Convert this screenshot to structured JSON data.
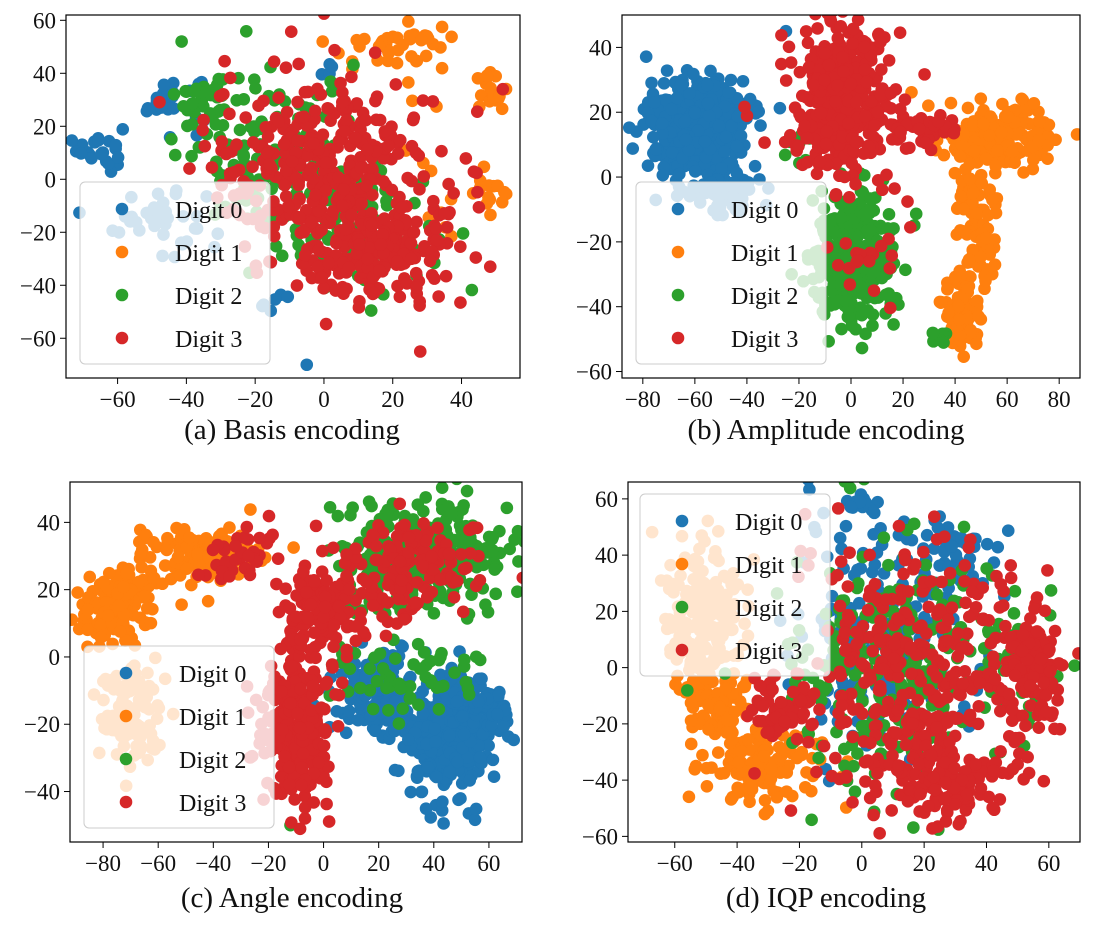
{
  "colors": {
    "Digit 0": "#1f77b4",
    "Digit 1": "#ff7f0e",
    "Digit 2": "#2ca02c",
    "Digit 3": "#d62728"
  },
  "chart_data": [
    {
      "type": "scatter",
      "panel": "a",
      "caption": "(a) Basis encoding",
      "xlim": [
        -75,
        57
      ],
      "ylim": [
        -75,
        62
      ],
      "xticks": [
        -60,
        -40,
        -20,
        0,
        20,
        40
      ],
      "yticks": [
        -60,
        -40,
        -20,
        0,
        20,
        40,
        60
      ],
      "legend": {
        "position": "lower-left",
        "entries": [
          "Digit 0",
          "Digit 1",
          "Digit 2",
          "Digit 3"
        ]
      },
      "series": [
        {
          "name": "Digit 0",
          "clusters": [
            {
              "cx": -65,
              "cy": 12,
              "rx": 6,
              "ry": 8,
              "n": 22
            },
            {
              "cx": -45,
              "cy": 30,
              "rx": 10,
              "ry": 9,
              "n": 28
            },
            {
              "cx": -48,
              "cy": -15,
              "rx": 12,
              "ry": 12,
              "n": 40
            },
            {
              "cx": -15,
              "cy": -45,
              "rx": 4,
              "ry": 6,
              "n": 6
            },
            {
              "cx": -5,
              "cy": -70,
              "rx": 1,
              "ry": 1,
              "n": 1
            },
            {
              "cx": 2,
              "cy": 40,
              "rx": 3,
              "ry": 4,
              "n": 5
            }
          ]
        },
        {
          "name": "Digit 1",
          "clusters": [
            {
              "cx": 20,
              "cy": 50,
              "rx": 18,
              "ry": 8,
              "n": 40
            },
            {
              "cx": 48,
              "cy": 33,
              "rx": 5,
              "ry": 6,
              "n": 16
            },
            {
              "cx": 48,
              "cy": -5,
              "rx": 5,
              "ry": 6,
              "n": 14
            },
            {
              "cx": 35,
              "cy": 10,
              "rx": 10,
              "ry": 25,
              "n": 12
            }
          ]
        },
        {
          "name": "Digit 2",
          "clusters": [
            {
              "cx": -15,
              "cy": 10,
              "rx": 25,
              "ry": 28,
              "n": 130
            },
            {
              "cx": 10,
              "cy": -20,
              "rx": 20,
              "ry": 22,
              "n": 100
            },
            {
              "cx": -35,
              "cy": 30,
              "rx": 8,
              "ry": 8,
              "n": 20
            }
          ]
        },
        {
          "name": "Digit 3",
          "clusters": [
            {
              "cx": 0,
              "cy": 5,
              "rx": 30,
              "ry": 33,
              "n": 340
            },
            {
              "cx": 15,
              "cy": -30,
              "rx": 20,
              "ry": 15,
              "n": 180
            },
            {
              "cx": 28,
              "cy": -65,
              "rx": 1,
              "ry": 1,
              "n": 1
            },
            {
              "cx": 52,
              "cy": 34,
              "rx": 1,
              "ry": 1,
              "n": 1
            },
            {
              "cx": 38,
              "cy": -15,
              "rx": 8,
              "ry": 10,
              "n": 12
            }
          ]
        }
      ]
    },
    {
      "type": "scatter",
      "panel": "b",
      "caption": "(b) Amplitude encoding",
      "xlim": [
        -88,
        88
      ],
      "ylim": [
        -62,
        50
      ],
      "xticks": [
        -80,
        -60,
        -40,
        -20,
        0,
        20,
        40,
        60,
        80
      ],
      "yticks": [
        -60,
        -40,
        -20,
        0,
        20,
        40
      ],
      "legend": {
        "position": "lower-left",
        "entries": [
          "Digit 0",
          "Digit 1",
          "Digit 2",
          "Digit 3"
        ]
      },
      "series": [
        {
          "name": "Digit 0",
          "clusters": [
            {
              "cx": -58,
              "cy": 15,
              "rx": 17,
              "ry": 14,
              "n": 420
            },
            {
              "cx": -48,
              "cy": -5,
              "rx": 12,
              "ry": 8,
              "n": 60
            },
            {
              "cx": -25,
              "cy": 45,
              "rx": 1,
              "ry": 1,
              "n": 1
            }
          ]
        },
        {
          "name": "Digit 1",
          "clusters": [
            {
              "cx": 55,
              "cy": 12,
              "rx": 22,
              "ry": 9,
              "n": 190
            },
            {
              "cx": 48,
              "cy": -15,
              "rx": 7,
              "ry": 20,
              "n": 90
            },
            {
              "cx": 42,
              "cy": -42,
              "rx": 8,
              "ry": 10,
              "n": 70
            }
          ]
        },
        {
          "name": "Digit 2",
          "clusters": [
            {
              "cx": 0,
              "cy": -25,
              "rx": 16,
              "ry": 18,
              "n": 320
            },
            {
              "cx": -20,
              "cy": 10,
              "rx": 6,
              "ry": 6,
              "n": 10
            },
            {
              "cx": 35,
              "cy": -50,
              "rx": 4,
              "ry": 5,
              "n": 8
            }
          ]
        },
        {
          "name": "Digit 3",
          "clusters": [
            {
              "cx": -3,
              "cy": 25,
              "rx": 17,
              "ry": 22,
              "n": 400
            },
            {
              "cx": 30,
              "cy": 15,
              "rx": 12,
              "ry": 5,
              "n": 40
            },
            {
              "cx": 5,
              "cy": -25,
              "rx": 12,
              "ry": 15,
              "n": 20
            },
            {
              "cx": -40,
              "cy": 20,
              "rx": 2,
              "ry": 2,
              "n": 2
            }
          ]
        }
      ]
    },
    {
      "type": "scatter",
      "panel": "c",
      "caption": "(c) Angle encoding",
      "xlim": [
        -92,
        72
      ],
      "ylim": [
        -55,
        52
      ],
      "xticks": [
        -80,
        -60,
        -40,
        -20,
        0,
        20,
        40,
        60
      ],
      "yticks": [
        -40,
        -20,
        0,
        20,
        40
      ],
      "legend": {
        "position": "lower-left",
        "entries": [
          "Digit 0",
          "Digit 1",
          "Digit 2",
          "Digit 3"
        ]
      },
      "series": [
        {
          "name": "Digit 0",
          "clusters": [
            {
              "cx": 20,
              "cy": -12,
              "rx": 12,
              "ry": 12,
              "n": 140
            },
            {
              "cx": 45,
              "cy": -25,
              "rx": 15,
              "ry": 18,
              "n": 260
            },
            {
              "cx": 55,
              "cy": -15,
              "rx": 10,
              "ry": 8,
              "n": 80
            }
          ]
        },
        {
          "name": "Digit 1",
          "clusters": [
            {
              "cx": -75,
              "cy": 15,
              "rx": 12,
              "ry": 10,
              "n": 160
            },
            {
              "cx": -45,
              "cy": 30,
              "rx": 18,
              "ry": 8,
              "n": 120
            },
            {
              "cx": -70,
              "cy": -15,
              "rx": 10,
              "ry": 15,
              "n": 120
            }
          ]
        },
        {
          "name": "Digit 2",
          "clusters": [
            {
              "cx": 35,
              "cy": 30,
              "rx": 28,
              "ry": 15,
              "n": 330
            },
            {
              "cx": 30,
              "cy": -5,
              "rx": 30,
              "ry": 10,
              "n": 60
            },
            {
              "cx": -12,
              "cy": -50,
              "rx": 1,
              "ry": 1,
              "n": 1
            }
          ]
        },
        {
          "name": "Digit 3",
          "clusters": [
            {
              "cx": -10,
              "cy": -20,
              "rx": 12,
              "ry": 22,
              "n": 260
            },
            {
              "cx": 0,
              "cy": 15,
              "rx": 14,
              "ry": 12,
              "n": 120
            },
            {
              "cx": 30,
              "cy": 25,
              "rx": 25,
              "ry": 15,
              "n": 150
            },
            {
              "cx": -30,
              "cy": 30,
              "rx": 10,
              "ry": 8,
              "n": 40
            }
          ]
        }
      ]
    },
    {
      "type": "scatter",
      "panel": "d",
      "caption": "(d) IQP encoding",
      "xlim": [
        -75,
        70
      ],
      "ylim": [
        -62,
        66
      ],
      "xticks": [
        -60,
        -40,
        -20,
        0,
        20,
        40,
        60
      ],
      "yticks": [
        -60,
        -40,
        -20,
        0,
        20,
        40,
        60
      ],
      "legend": {
        "position": "upper-left",
        "entries": [
          "Digit 0",
          "Digit 1",
          "Digit 2",
          "Digit 3"
        ]
      },
      "series": [
        {
          "name": "Digit 0",
          "clusters": [
            {
              "cx": 5,
              "cy": 10,
              "rx": 25,
              "ry": 40,
              "n": 200
            },
            {
              "cx": 30,
              "cy": 40,
              "rx": 12,
              "ry": 10,
              "n": 40
            },
            {
              "cx": 0,
              "cy": 58,
              "rx": 5,
              "ry": 3,
              "n": 12
            }
          ]
        },
        {
          "name": "Digit 1",
          "clusters": [
            {
              "cx": -50,
              "cy": 15,
              "rx": 12,
              "ry": 30,
              "n": 220
            },
            {
              "cx": -30,
              "cy": -35,
              "rx": 18,
              "ry": 12,
              "n": 120
            },
            {
              "cx": -45,
              "cy": -15,
              "rx": 10,
              "ry": 10,
              "n": 60
            }
          ]
        },
        {
          "name": "Digit 2",
          "clusters": [
            {
              "cx": 10,
              "cy": 0,
              "rx": 35,
              "ry": 40,
              "n": 260
            },
            {
              "cx": 50,
              "cy": 0,
              "rx": 10,
              "ry": 20,
              "n": 30
            }
          ]
        },
        {
          "name": "Digit 3",
          "clusters": [
            {
              "cx": 20,
              "cy": -5,
              "rx": 35,
              "ry": 45,
              "n": 380
            },
            {
              "cx": 55,
              "cy": 0,
              "rx": 8,
              "ry": 18,
              "n": 110
            },
            {
              "cx": -25,
              "cy": -15,
              "rx": 10,
              "ry": 12,
              "n": 60
            },
            {
              "cx": 30,
              "cy": -40,
              "rx": 18,
              "ry": 12,
              "n": 90
            }
          ]
        }
      ]
    }
  ]
}
